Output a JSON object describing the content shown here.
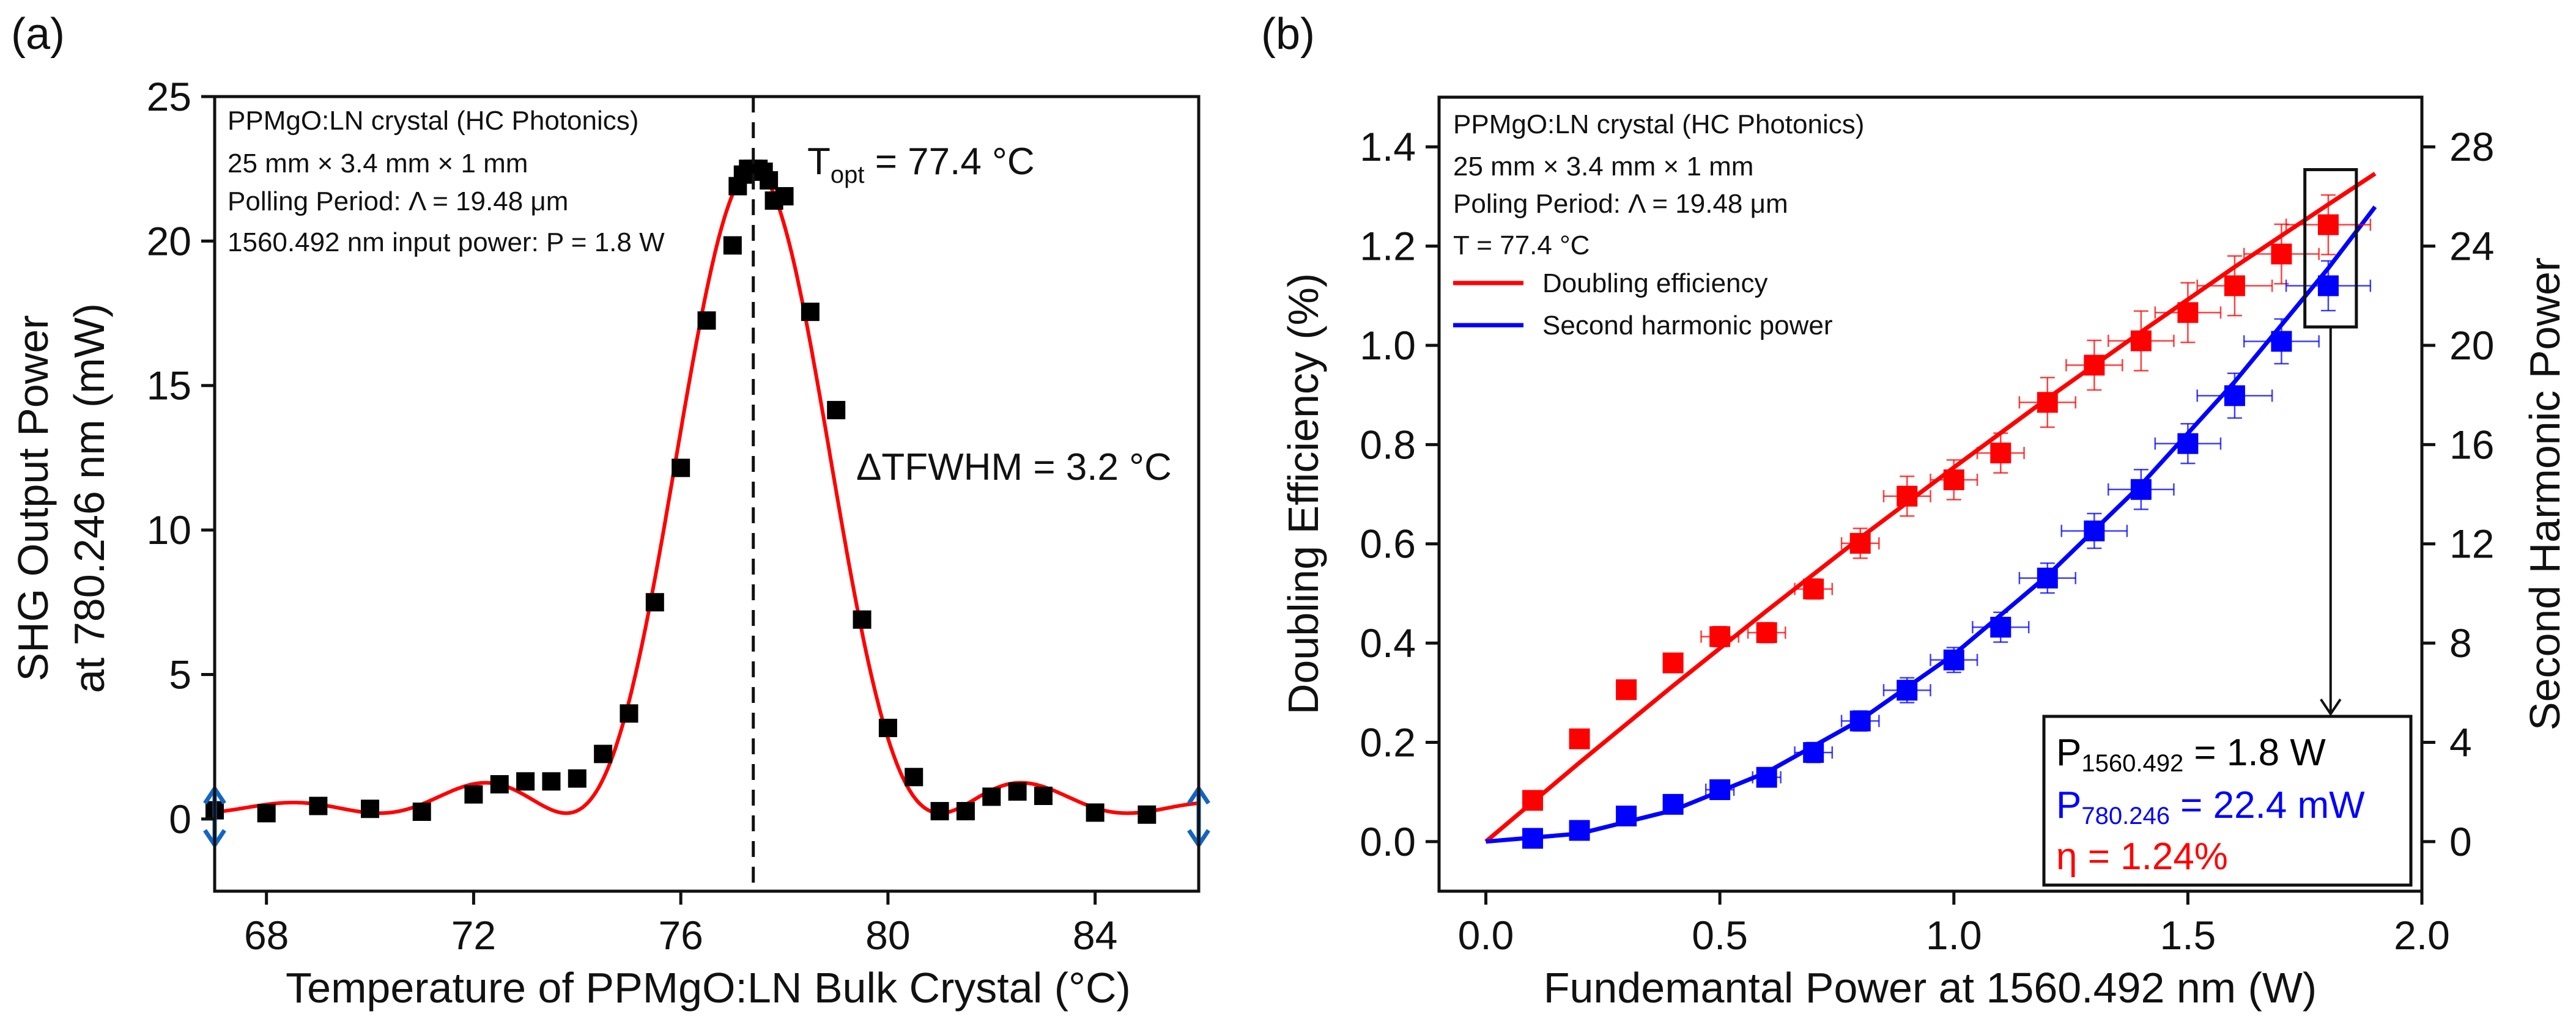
{
  "chart_data": [
    {
      "panel_label": "(a)",
      "type": "scatter",
      "xlabel": "Temperature of PPMgO:LN Bulk Crystal (°C)",
      "ylabel_lines": [
        "SHG Output Power",
        "at 780.246 nm (mW)"
      ],
      "xlim": [
        67,
        86
      ],
      "ylim": [
        -2.5,
        25
      ],
      "xticks": [
        68,
        72,
        76,
        80,
        84
      ],
      "yticks": [
        0,
        5,
        10,
        15,
        20,
        25
      ],
      "grid": false,
      "annotations": [
        "PPMgO:LN crystal (HC Photonics)",
        "25 mm × 3.4 mm × 1 mm",
        "Polling Period: Λ = 19.48 μm",
        "1560.492 nm input power: P = 1.8 W"
      ],
      "topt": {
        "prefix": "T",
        "sub": "opt",
        "suffix": " = 77.4 °C",
        "value": 77.4
      },
      "fwhm": {
        "text": "ΔTFWHM = 3.2 °C",
        "value": 3.2
      },
      "marker_color": "#000000",
      "fit_color": "#ff0000",
      "arrow_color": "#1565c0",
      "points": {
        "x": [
          67,
          68,
          69,
          70,
          71,
          72,
          72.5,
          73,
          73.5,
          74,
          74.5,
          75,
          75.5,
          76,
          76.5,
          77,
          77.1,
          77.2,
          77.3,
          77.4,
          77.5,
          77.6,
          77.7,
          77.8,
          78,
          78.5,
          79,
          79.5,
          80,
          80.5,
          81,
          81.5,
          82,
          82.5,
          83,
          84,
          85
        ],
        "y": [
          0.3,
          0.2,
          0.45,
          0.35,
          0.25,
          0.85,
          1.2,
          1.3,
          1.3,
          1.4,
          2.25,
          3.65,
          7.5,
          12.15,
          17.25,
          19.85,
          21.9,
          22.3,
          22.5,
          22.5,
          22.5,
          22.4,
          22.1,
          21.4,
          21.55,
          17.55,
          14.15,
          6.9,
          3.15,
          1.45,
          0.27,
          0.27,
          0.77,
          0.95,
          0.8,
          0.22,
          0.15
        ]
      }
    },
    {
      "panel_label": "(b)",
      "type": "scatter",
      "xlabel": "Fundemantal Power at 1560.492 nm (W)",
      "ylabel": "Doubling Efficiency (%)",
      "ylabel_right": "Second Harmonic Power",
      "xlim": [
        -0.1,
        2.0
      ],
      "ylim": [
        -0.1,
        1.5
      ],
      "ylim_right": [
        -2,
        30
      ],
      "xticks": [
        "0.0",
        "0.5",
        "1.0",
        "1.5",
        "2.0"
      ],
      "yticks": [
        "0.0",
        "0.2",
        "0.4",
        "0.6",
        "0.8",
        "1.0",
        "1.2",
        "1.4"
      ],
      "yticks_right": [
        "0",
        "4",
        "8",
        "12",
        "16",
        "20",
        "24",
        "28"
      ],
      "grid": false,
      "annotations": [
        "PPMgO:LN crystal (HC Photonics)",
        "25 mm × 3.4 mm × 1 mm",
        "Poling Period: Λ = 19.48 μm",
        "T = 77.4 °C"
      ],
      "legend_placement": "top-left",
      "x": [
        0.1,
        0.2,
        0.3,
        0.4,
        0.5,
        0.6,
        0.7,
        0.8,
        0.9,
        1.0,
        1.1,
        1.2,
        1.3,
        1.4,
        1.5,
        1.6,
        1.7,
        1.8
      ],
      "series": [
        {
          "name": "Doubling efficiency",
          "axis": "left",
          "color": "#ff0000",
          "values": [
            0.083,
            0.207,
            0.306,
            0.36,
            0.413,
            0.421,
            0.509,
            0.601,
            0.696,
            0.729,
            0.783,
            0.885,
            0.96,
            1.009,
            1.066,
            1.12,
            1.184,
            1.243
          ],
          "xerr": [
            0,
            0,
            0,
            0,
            0.04,
            0.04,
            0.04,
            0.04,
            0.05,
            0.05,
            0.05,
            0.06,
            0.06,
            0.07,
            0.07,
            0.08,
            0.08,
            0.09
          ],
          "yerr": [
            0,
            0,
            0,
            0,
            0.02,
            0.02,
            0.02,
            0.03,
            0.04,
            0.04,
            0.04,
            0.05,
            0.05,
            0.06,
            0.06,
            0.06,
            0.06,
            0.06
          ],
          "fit": {
            "x": [
              0,
              0.2,
              0.4,
              0.6,
              0.8,
              1.0,
              1.2,
              1.4,
              1.6,
              1.8,
              1.9
            ],
            "y": [
              0,
              0.159,
              0.314,
              0.465,
              0.612,
              0.754,
              0.893,
              1.027,
              1.158,
              1.284,
              1.346
            ]
          }
        },
        {
          "name": "Second harmonic power",
          "axis": "right",
          "color": "#0000ff",
          "values": [
            0.13,
            0.45,
            1.03,
            1.5,
            2.09,
            2.59,
            3.59,
            4.86,
            6.1,
            7.32,
            8.64,
            10.62,
            12.52,
            14.19,
            16.04,
            17.97,
            20.16,
            22.4
          ],
          "xerr": [
            0,
            0,
            0,
            0.02,
            0.03,
            0.03,
            0.04,
            0.04,
            0.05,
            0.05,
            0.06,
            0.06,
            0.07,
            0.07,
            0.07,
            0.08,
            0.08,
            0.09
          ],
          "yerr": [
            0,
            0,
            0,
            0.2,
            0.3,
            0.3,
            0.4,
            0.4,
            0.5,
            0.5,
            0.6,
            0.6,
            0.7,
            0.8,
            0.8,
            0.9,
            0.9,
            1.0
          ],
          "fit": {
            "x": [
              0,
              0.2,
              0.4,
              0.6,
              0.8,
              1.0,
              1.2,
              1.4,
              1.6,
              1.8,
              1.9
            ],
            "y": [
              0,
              0.32,
              1.26,
              2.79,
              4.9,
              7.54,
              10.72,
              14.38,
              18.53,
              23.11,
              25.58
            ]
          }
        }
      ],
      "highlight": {
        "x": [
          1.75,
          1.86
        ],
        "y": [
          1.037,
          1.354
        ]
      },
      "result_box": {
        "line1": {
          "prefix": "P",
          "sub": "1560.492",
          "suffix": " = 1.8 W",
          "color": "#000000"
        },
        "line2": {
          "prefix": "P",
          "sub": "780.246",
          "suffix": " = 22.4 mW",
          "color": "#0000ff"
        },
        "line3": {
          "text": "η = 1.24%",
          "color": "#ff0000"
        }
      }
    }
  ]
}
